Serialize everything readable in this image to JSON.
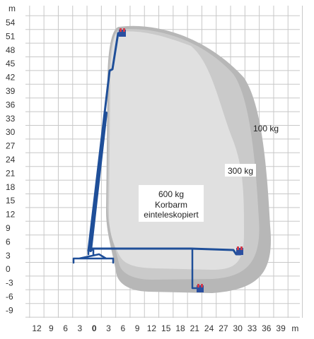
{
  "axes": {
    "y_unit": "m",
    "x_unit": "m",
    "y_ticks": [
      "54",
      "51",
      "48",
      "45",
      "42",
      "39",
      "36",
      "33",
      "30",
      "27",
      "24",
      "21",
      "18",
      "15",
      "12",
      "9",
      "6",
      "3",
      "0",
      "-3",
      "-6",
      "-9"
    ],
    "x_ticks": [
      "12",
      "9",
      "6",
      "3",
      "0",
      "3",
      "6",
      "9",
      "12",
      "15",
      "18",
      "21",
      "24",
      "27",
      "30",
      "33",
      "36",
      "39"
    ],
    "x_origin_label": "0"
  },
  "zones": {
    "outer_label": "100 kg",
    "middle_label": "300 kg",
    "inner_label_lines": [
      "600 kg",
      "Korbarm",
      "einteleskopiert"
    ]
  },
  "colors": {
    "grid": "#c8c8c8",
    "zone_outer": "#b7b7b7",
    "zone_middle": "#cacaca",
    "zone_inner": "#e0e0e0",
    "boom": "#1f4f99",
    "basket_red": "#d33a4a",
    "basket_blue": "#2b4fa0"
  }
}
